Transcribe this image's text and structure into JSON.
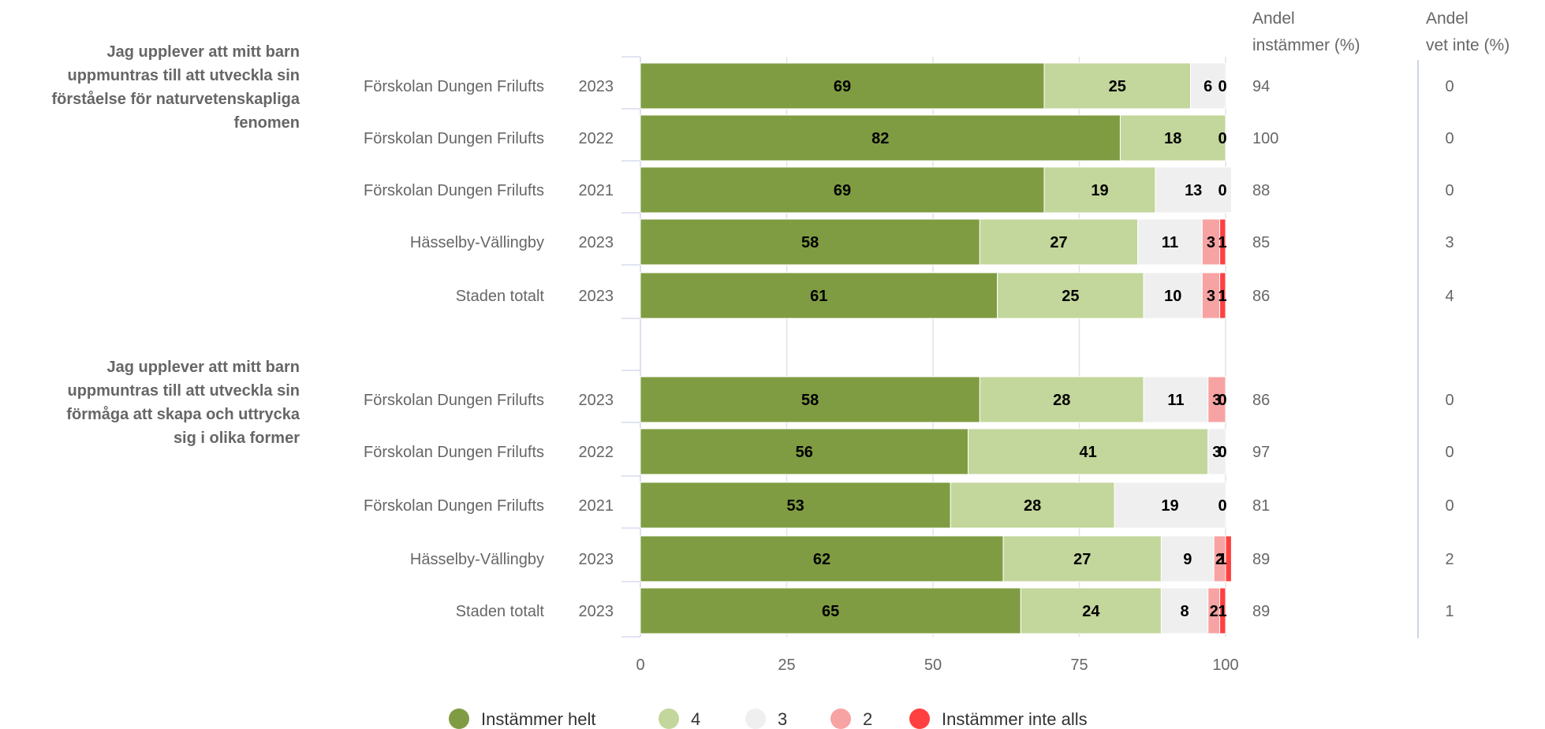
{
  "chart_data": {
    "type": "bar",
    "orientation": "horizontal",
    "stacked": true,
    "xlim": [
      0,
      100
    ],
    "x_ticks": [
      0,
      25,
      50,
      75,
      100
    ],
    "grid": true,
    "legend_position": "bottom",
    "categories_scale": [
      "Instämmer helt",
      "4",
      "3",
      "2",
      "Instämmer inte alls"
    ],
    "colors": [
      "#7f9c42",
      "#c3d69b",
      "#efefef",
      "#f7a3a3",
      "#ff4040"
    ],
    "side_columns": [
      {
        "lines": [
          "Andel",
          "instämmer (%)"
        ]
      },
      {
        "lines": [
          "Andel",
          "vet inte (%)"
        ]
      }
    ],
    "groups": [
      {
        "question_lines": [
          "Jag upplever att mitt barn",
          "uppmuntras till att utveckla sin",
          "förståelse för naturvetenskapliga",
          "fenomen"
        ],
        "rows": [
          {
            "unit": "Förskolan Dungen Frilufts",
            "year": "2023",
            "values": [
              69,
              25,
              6,
              0,
              0
            ],
            "labels": [
              "69",
              "25",
              "6",
              "0",
              ""
            ],
            "agree": "94",
            "dontknow": "0"
          },
          {
            "unit": "Förskolan Dungen Frilufts",
            "year": "2022",
            "values": [
              82,
              18,
              0,
              0,
              0
            ],
            "labels": [
              "82",
              "18",
              "",
              "0",
              ""
            ],
            "agree": "100",
            "dontknow": "0"
          },
          {
            "unit": "Förskolan Dungen Frilufts",
            "year": "2021",
            "values": [
              69,
              19,
              13,
              0,
              0
            ],
            "labels": [
              "69",
              "19",
              "13",
              "0",
              ""
            ],
            "agree": "88",
            "dontknow": "0"
          },
          {
            "unit": "Hässelby-Vällingby",
            "year": "2023",
            "values": [
              58,
              27,
              11,
              3,
              1
            ],
            "labels": [
              "58",
              "27",
              "11",
              "3",
              "1"
            ],
            "agree": "85",
            "dontknow": "3"
          },
          {
            "unit": "Staden totalt",
            "year": "2023",
            "values": [
              61,
              25,
              10,
              3,
              1
            ],
            "labels": [
              "61",
              "25",
              "10",
              "3",
              "1"
            ],
            "agree": "86",
            "dontknow": "4"
          }
        ]
      },
      {
        "question_lines": [
          "Jag upplever att mitt barn",
          "uppmuntras till att utveckla sin",
          "förmåga att skapa och uttrycka",
          "sig i olika former"
        ],
        "rows": [
          {
            "unit": "Förskolan Dungen Frilufts",
            "year": "2023",
            "values": [
              58,
              28,
              11,
              3,
              0
            ],
            "labels": [
              "58",
              "28",
              "11",
              "3",
              "0"
            ],
            "agree": "86",
            "dontknow": "0"
          },
          {
            "unit": "Förskolan Dungen Frilufts",
            "year": "2022",
            "values": [
              56,
              41,
              3,
              0,
              0
            ],
            "labels": [
              "56",
              "41",
              "3",
              "0",
              ""
            ],
            "agree": "97",
            "dontknow": "0"
          },
          {
            "unit": "Förskolan Dungen Frilufts",
            "year": "2021",
            "values": [
              53,
              28,
              19,
              0,
              0
            ],
            "labels": [
              "53",
              "28",
              "19",
              "0",
              ""
            ],
            "agree": "81",
            "dontknow": "0"
          },
          {
            "unit": "Hässelby-Vällingby",
            "year": "2023",
            "values": [
              62,
              27,
              9,
              2,
              1
            ],
            "labels": [
              "62",
              "27",
              "9",
              "2",
              "1"
            ],
            "agree": "89",
            "dontknow": "2"
          },
          {
            "unit": "Staden totalt",
            "year": "2023",
            "values": [
              65,
              24,
              8,
              2,
              1
            ],
            "labels": [
              "65",
              "24",
              "8",
              "2",
              "1"
            ],
            "agree": "89",
            "dontknow": "1"
          }
        ]
      }
    ]
  }
}
